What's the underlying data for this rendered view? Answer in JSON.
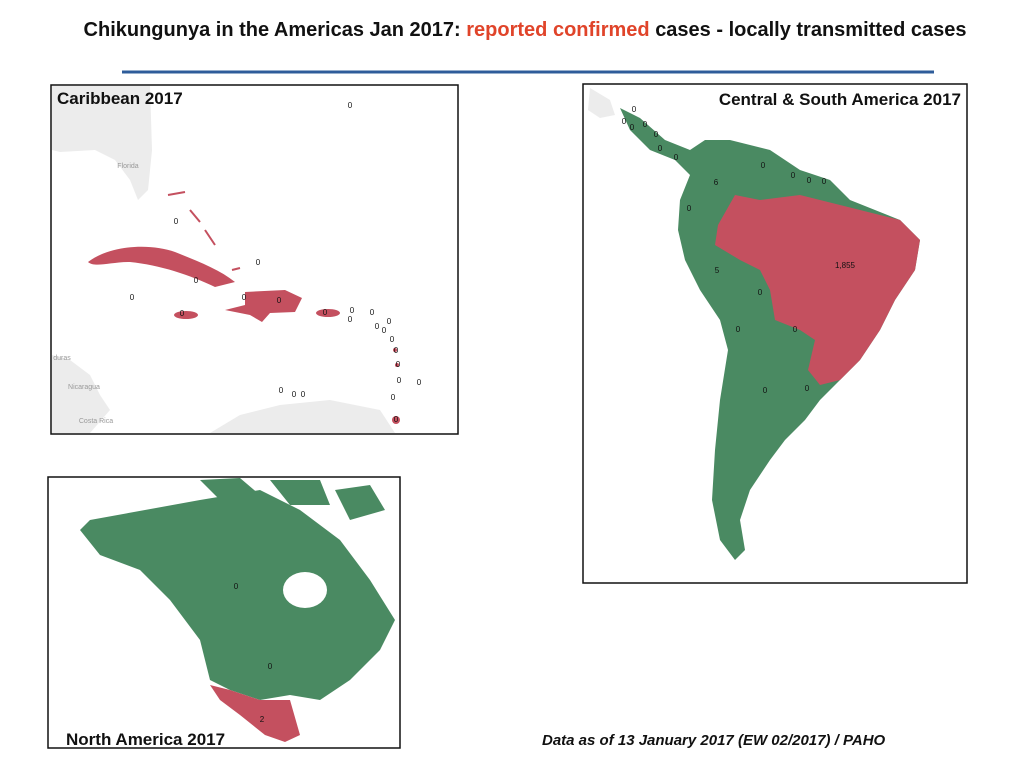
{
  "title": {
    "part1": "Chikungunya in the Americas Jan 2017:",
    "highlight": "reported confirmed",
    "part2": "cases - locally transmitted cases"
  },
  "maps": [
    {
      "title": "Caribbean 2017",
      "labels": [
        "0",
        "0",
        "0",
        "0",
        "0",
        "0",
        "0",
        "0",
        "0",
        "0",
        "0",
        "0",
        "0",
        "0",
        "0",
        "0",
        "0",
        "0",
        "0",
        "0",
        "0",
        "0",
        "0",
        "0",
        "0"
      ],
      "base_labels": [
        "Florida",
        "duras",
        "Nicaragua",
        "Costa Rica"
      ]
    },
    {
      "title": "Central & South America  2017",
      "labels": [
        "0",
        "0",
        "0",
        "0",
        "0",
        "0",
        "0",
        "0",
        "0",
        "0",
        "0",
        "6",
        "0",
        "1,855",
        "5",
        "0",
        "0",
        "0",
        "0",
        "0"
      ]
    },
    {
      "title": "North America 2017",
      "labels": [
        "0",
        "0",
        "2"
      ]
    }
  ],
  "footer": "Data as of 13 January 2017 (EW 02/2017) / PAHO"
}
